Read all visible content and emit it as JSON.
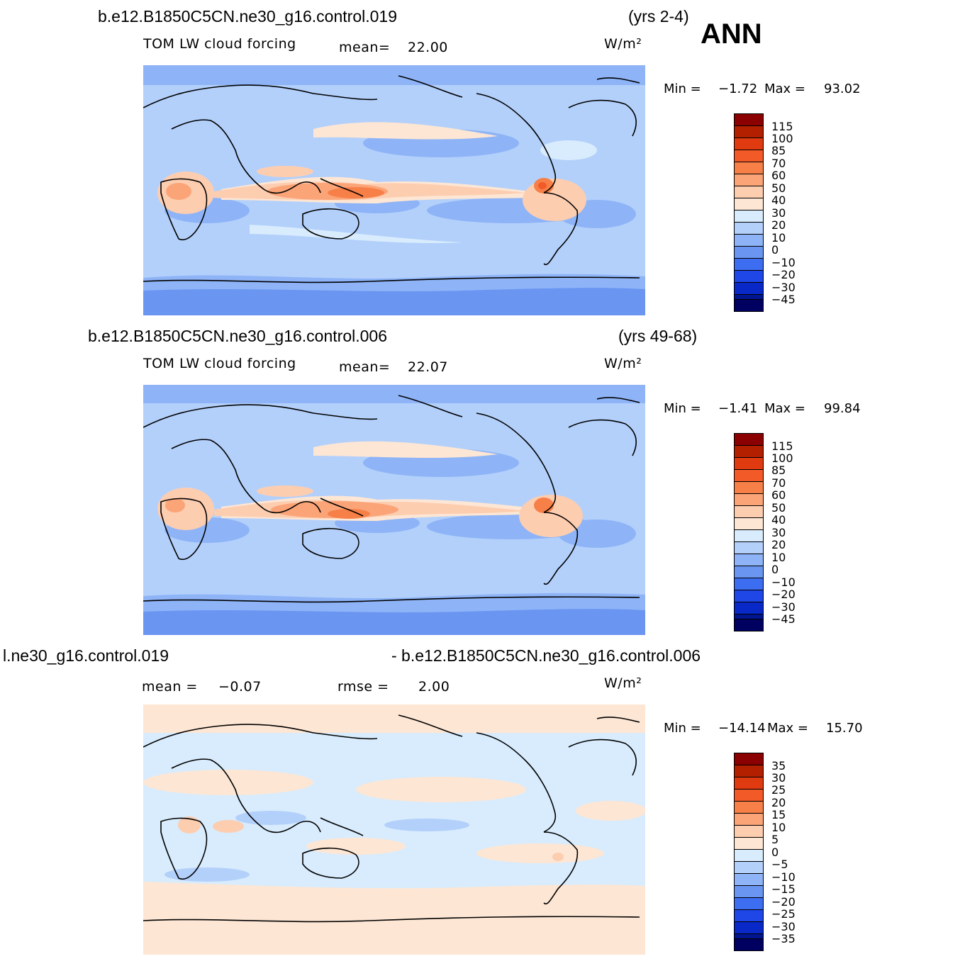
{
  "annual_label": "ANN",
  "units": "W/m²",
  "panels": [
    {
      "case": "b.e12.B1850C5CN.ne30_g16.control.019",
      "years": "(yrs 2-4)",
      "variable": "TOM LW cloud forcing",
      "stat_label": "mean=",
      "stat_value": "22.00",
      "min_label": "Min =",
      "min_value": "−1.72",
      "max_label": "Max =",
      "max_value": "93.02",
      "colorbar_labels": [
        "115",
        "100",
        "85",
        "70",
        "60",
        "50",
        "40",
        "30",
        "20",
        "10",
        "0",
        "−10",
        "−20",
        "−30",
        "−45"
      ]
    },
    {
      "case": "b.e12.B1850C5CN.ne30_g16.control.006",
      "years": "(yrs 49-68)",
      "variable": "TOM LW cloud forcing",
      "stat_label": "mean=",
      "stat_value": "22.07",
      "min_label": "Min =",
      "min_value": "−1.41",
      "max_label": "Max =",
      "max_value": "99.84",
      "colorbar_labels": [
        "115",
        "100",
        "85",
        "70",
        "60",
        "50",
        "40",
        "30",
        "20",
        "10",
        "0",
        "−10",
        "−20",
        "−30",
        "−45"
      ]
    },
    {
      "case_left": "l.ne30_g16.control.019",
      "case_right": "- b.e12.B1850C5CN.ne30_g16.control.006",
      "mean_label": "mean =",
      "mean_value": "−0.07",
      "rmse_label": "rmse =",
      "rmse_value": "2.00",
      "min_label": "Min =",
      "min_value": "−14.14",
      "max_label": "Max =",
      "max_value": "15.70",
      "colorbar_labels": [
        "35",
        "30",
        "25",
        "20",
        "15",
        "10",
        "5",
        "0",
        "−5",
        "−10",
        "−15",
        "−20",
        "−25",
        "−30",
        "−35"
      ]
    }
  ],
  "colors": {
    "main_scale": [
      "#8b0000",
      "#b22000",
      "#e03a10",
      "#f25a28",
      "#f78048",
      "#fba478",
      "#fdcdb0",
      "#fde6d4",
      "#d8ecfd",
      "#b3d0fb",
      "#8eb4f7",
      "#6a96f2",
      "#3d6df0",
      "#1f46e6",
      "#0828c8",
      "#001590",
      "#000060"
    ],
    "diff_scale": [
      "#8b0000",
      "#b22000",
      "#e03a10",
      "#f25a28",
      "#f78048",
      "#fba478",
      "#fdcdb0",
      "#fde6d4",
      "#d8ecfd",
      "#b3d0fb",
      "#8eb4f7",
      "#6a96f2",
      "#3d6df0",
      "#1f46e6",
      "#0828c8",
      "#001590",
      "#000060"
    ]
  }
}
